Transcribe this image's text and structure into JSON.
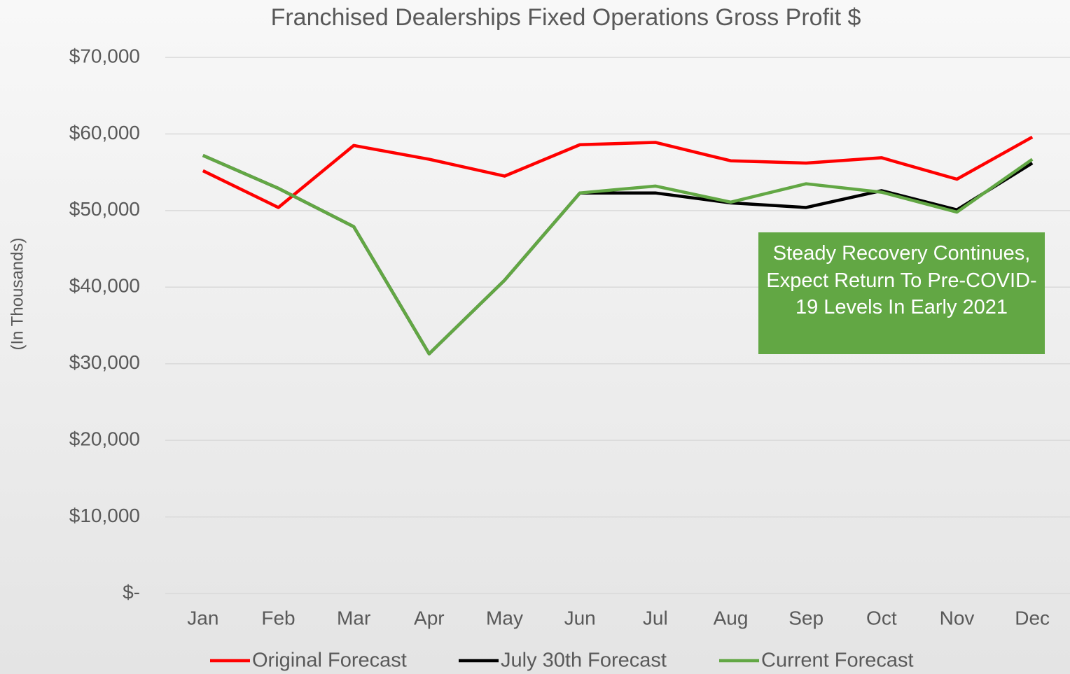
{
  "chart_data": {
    "type": "line",
    "title": "Franchised Dealerships Fixed Operations Gross Profit $",
    "y_axis_label": "(In Thousands)",
    "annotation": "Steady Recovery Continues, Expect Return To Pre-COVID-19 Levels In Early 2021",
    "categories": [
      "Jan",
      "Feb",
      "Mar",
      "Apr",
      "May",
      "Jun",
      "Jul",
      "Aug",
      "Sep",
      "Oct",
      "Nov",
      "Dec"
    ],
    "series": [
      {
        "name": "Original Forecast",
        "color": "#ff0000",
        "values": [
          55200,
          50400,
          58500,
          56700,
          54500,
          58600,
          58900,
          56500,
          56200,
          56900,
          54100,
          59600
        ]
      },
      {
        "name": "July 30th Forecast",
        "color": "#000000",
        "values": [
          57200,
          52900,
          47900,
          31300,
          40900,
          52300,
          52300,
          51000,
          50400,
          52600,
          50100,
          56200
        ]
      },
      {
        "name": "Current Forecast",
        "color": "#62a744",
        "values": [
          57200,
          52900,
          47900,
          31300,
          40900,
          52300,
          53200,
          51100,
          53500,
          52400,
          49800,
          56700
        ]
      }
    ],
    "ylim": [
      0,
      70000
    ],
    "yticks": [
      {
        "value": 0,
        "label": "$-"
      },
      {
        "value": 10000,
        "label": "$10,000"
      },
      {
        "value": 20000,
        "label": "$20,000"
      },
      {
        "value": 30000,
        "label": "$30,000"
      },
      {
        "value": 40000,
        "label": "$40,000"
      },
      {
        "value": 50000,
        "label": "$50,000"
      },
      {
        "value": 60000,
        "label": "$60,000"
      },
      {
        "value": 70000,
        "label": "$70,000"
      }
    ],
    "grid": true,
    "legend": "bottom"
  }
}
